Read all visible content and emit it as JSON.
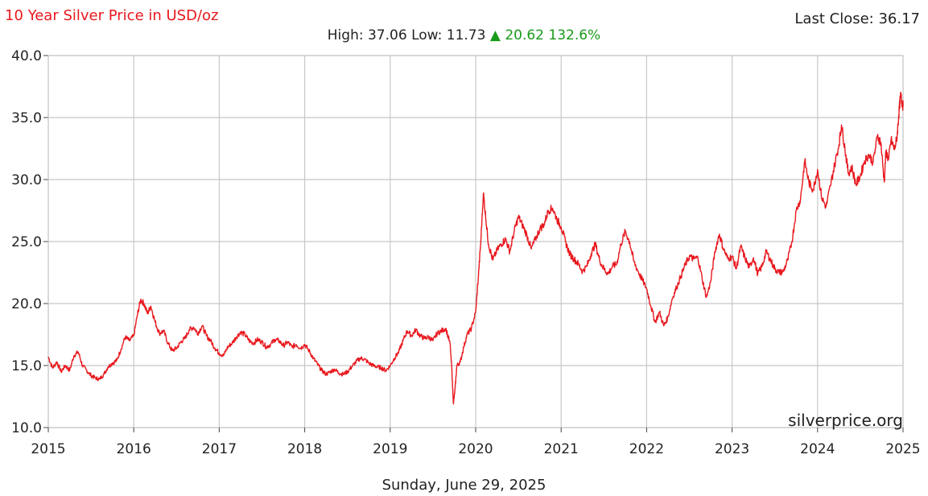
{
  "header": {
    "title": "10 Year Silver Price in USD/oz",
    "last_close_label": "Last Close:",
    "last_close_value": "36.17",
    "high_label": "High:",
    "high_value": "37.06",
    "low_label": "Low:",
    "low_value": "11.73",
    "change_arrow": "▲",
    "change_value": "20.62",
    "change_pct": "132.6%"
  },
  "watermark": "silverprice.org",
  "footer_date": "Sunday, June 29, 2025",
  "colors": {
    "series": "#e8181e",
    "title": "#e8181e",
    "positive": "#1a9a1a",
    "grid": "#c8c8c8"
  },
  "chart_data": {
    "type": "line",
    "title": "10 Year Silver Price in USD/oz",
    "xlabel": "",
    "ylabel": "",
    "xlim": [
      2015,
      2025
    ],
    "ylim": [
      10,
      40
    ],
    "x_ticks": [
      "2015",
      "2016",
      "2017",
      "2018",
      "2019",
      "2020",
      "2021",
      "2022",
      "2023",
      "2024",
      "2025"
    ],
    "y_ticks": [
      "10.0",
      "15.0",
      "20.0",
      "25.0",
      "30.0",
      "35.0",
      "40.0"
    ],
    "grid": true,
    "legend": "none",
    "series": [
      {
        "values": [
          [
            2015.0,
            15.7
          ],
          [
            2015.05,
            14.8
          ],
          [
            2015.1,
            15.3
          ],
          [
            2015.15,
            14.5
          ],
          [
            2015.2,
            15.0
          ],
          [
            2015.25,
            14.6
          ],
          [
            2015.3,
            15.8
          ],
          [
            2015.35,
            16.1
          ],
          [
            2015.4,
            15.0
          ],
          [
            2015.45,
            14.6
          ],
          [
            2015.5,
            14.2
          ],
          [
            2015.55,
            14.0
          ],
          [
            2015.6,
            13.9
          ],
          [
            2015.65,
            14.3
          ],
          [
            2015.7,
            14.9
          ],
          [
            2015.75,
            15.2
          ],
          [
            2015.8,
            15.4
          ],
          [
            2015.85,
            16.3
          ],
          [
            2015.9,
            17.3
          ],
          [
            2015.95,
            17.0
          ],
          [
            2016.0,
            17.4
          ],
          [
            2016.04,
            19.0
          ],
          [
            2016.08,
            20.3
          ],
          [
            2016.12,
            20.0
          ],
          [
            2016.16,
            19.2
          ],
          [
            2016.2,
            19.8
          ],
          [
            2016.25,
            18.5
          ],
          [
            2016.3,
            17.6
          ],
          [
            2016.35,
            17.8
          ],
          [
            2016.4,
            16.8
          ],
          [
            2016.45,
            16.2
          ],
          [
            2016.5,
            16.4
          ],
          [
            2016.55,
            16.9
          ],
          [
            2016.6,
            17.2
          ],
          [
            2016.65,
            17.9
          ],
          [
            2016.7,
            18.1
          ],
          [
            2016.75,
            17.6
          ],
          [
            2016.8,
            18.2
          ],
          [
            2016.85,
            17.4
          ],
          [
            2016.9,
            17.0
          ],
          [
            2016.95,
            16.4
          ],
          [
            2017.0,
            16.0
          ],
          [
            2017.05,
            15.8
          ],
          [
            2017.1,
            16.5
          ],
          [
            2017.15,
            16.8
          ],
          [
            2017.2,
            17.3
          ],
          [
            2017.25,
            17.7
          ],
          [
            2017.3,
            17.5
          ],
          [
            2017.35,
            17.0
          ],
          [
            2017.4,
            16.8
          ],
          [
            2017.45,
            17.1
          ],
          [
            2017.5,
            16.9
          ],
          [
            2017.55,
            16.5
          ],
          [
            2017.6,
            16.7
          ],
          [
            2017.65,
            17.1
          ],
          [
            2017.7,
            17.0
          ],
          [
            2017.75,
            16.6
          ],
          [
            2017.8,
            16.9
          ],
          [
            2017.85,
            16.5
          ],
          [
            2017.9,
            16.7
          ],
          [
            2017.95,
            16.4
          ],
          [
            2018.0,
            16.7
          ],
          [
            2018.05,
            16.2
          ],
          [
            2018.1,
            15.6
          ],
          [
            2018.15,
            15.1
          ],
          [
            2018.2,
            14.6
          ],
          [
            2018.25,
            14.3
          ],
          [
            2018.3,
            14.5
          ],
          [
            2018.35,
            14.7
          ],
          [
            2018.4,
            14.4
          ],
          [
            2018.45,
            14.3
          ],
          [
            2018.5,
            14.5
          ],
          [
            2018.55,
            14.9
          ],
          [
            2018.6,
            15.3
          ],
          [
            2018.65,
            15.6
          ],
          [
            2018.7,
            15.5
          ],
          [
            2018.75,
            15.2
          ],
          [
            2018.8,
            15.0
          ],
          [
            2018.85,
            14.9
          ],
          [
            2018.9,
            14.8
          ],
          [
            2018.95,
            14.6
          ],
          [
            2019.0,
            15.0
          ],
          [
            2019.05,
            15.6
          ],
          [
            2019.1,
            16.1
          ],
          [
            2019.15,
            17.0
          ],
          [
            2019.2,
            17.8
          ],
          [
            2019.25,
            17.4
          ],
          [
            2019.3,
            17.9
          ],
          [
            2019.35,
            17.4
          ],
          [
            2019.4,
            17.2
          ],
          [
            2019.45,
            17.3
          ],
          [
            2019.5,
            17.0
          ],
          [
            2019.55,
            17.6
          ],
          [
            2019.6,
            17.8
          ],
          [
            2019.65,
            18.0
          ],
          [
            2019.7,
            16.8
          ],
          [
            2019.72,
            14.8
          ],
          [
            2019.74,
            11.9
          ],
          [
            2019.76,
            13.2
          ],
          [
            2019.78,
            15.0
          ],
          [
            2019.82,
            15.3
          ],
          [
            2019.86,
            16.5
          ],
          [
            2019.9,
            17.5
          ],
          [
            2019.95,
            18.0
          ],
          [
            2020.0,
            19.3
          ],
          [
            2020.03,
            22.0
          ],
          [
            2020.06,
            25.0
          ],
          [
            2020.09,
            28.9
          ],
          [
            2020.12,
            26.8
          ],
          [
            2020.15,
            24.8
          ],
          [
            2020.2,
            23.5
          ],
          [
            2020.25,
            24.3
          ],
          [
            2020.3,
            24.8
          ],
          [
            2020.35,
            25.2
          ],
          [
            2020.4,
            24.2
          ],
          [
            2020.45,
            25.8
          ],
          [
            2020.5,
            27.0
          ],
          [
            2020.55,
            26.3
          ],
          [
            2020.6,
            25.5
          ],
          [
            2020.65,
            24.4
          ],
          [
            2020.7,
            25.2
          ],
          [
            2020.75,
            26.0
          ],
          [
            2020.8,
            26.4
          ],
          [
            2020.85,
            27.5
          ],
          [
            2020.9,
            27.7
          ],
          [
            2020.95,
            26.8
          ],
          [
            2021.0,
            26.2
          ],
          [
            2021.05,
            25.0
          ],
          [
            2021.1,
            24.0
          ],
          [
            2021.15,
            23.6
          ],
          [
            2021.2,
            23.2
          ],
          [
            2021.25,
            22.6
          ],
          [
            2021.3,
            23.0
          ],
          [
            2021.35,
            24.0
          ],
          [
            2021.4,
            24.8
          ],
          [
            2021.45,
            23.5
          ],
          [
            2021.5,
            22.8
          ],
          [
            2021.55,
            22.4
          ],
          [
            2021.6,
            23.0
          ],
          [
            2021.65,
            23.2
          ],
          [
            2021.7,
            24.8
          ],
          [
            2021.75,
            25.8
          ],
          [
            2021.8,
            25.0
          ],
          [
            2021.85,
            23.4
          ],
          [
            2021.9,
            22.6
          ],
          [
            2021.95,
            21.9
          ],
          [
            2022.0,
            21.2
          ],
          [
            2022.05,
            19.8
          ],
          [
            2022.1,
            18.5
          ],
          [
            2022.15,
            19.3
          ],
          [
            2022.2,
            18.2
          ],
          [
            2022.25,
            18.9
          ],
          [
            2022.3,
            20.4
          ],
          [
            2022.35,
            21.3
          ],
          [
            2022.4,
            22.2
          ],
          [
            2022.45,
            23.1
          ],
          [
            2022.5,
            23.8
          ],
          [
            2022.55,
            23.6
          ],
          [
            2022.6,
            23.7
          ],
          [
            2022.65,
            22.0
          ],
          [
            2022.7,
            20.5
          ],
          [
            2022.75,
            21.8
          ],
          [
            2022.8,
            24.2
          ],
          [
            2022.85,
            25.6
          ],
          [
            2022.9,
            24.4
          ],
          [
            2022.95,
            23.6
          ],
          [
            2023.0,
            23.8
          ],
          [
            2023.05,
            22.8
          ],
          [
            2023.1,
            24.6
          ],
          [
            2023.15,
            23.7
          ],
          [
            2023.2,
            22.9
          ],
          [
            2023.25,
            23.7
          ],
          [
            2023.3,
            22.4
          ],
          [
            2023.35,
            23.0
          ],
          [
            2023.4,
            24.2
          ],
          [
            2023.45,
            23.5
          ],
          [
            2023.5,
            22.8
          ],
          [
            2023.55,
            22.5
          ],
          [
            2023.6,
            22.6
          ],
          [
            2023.65,
            23.5
          ],
          [
            2023.7,
            25.0
          ],
          [
            2023.75,
            27.5
          ],
          [
            2023.8,
            28.4
          ],
          [
            2023.85,
            31.5
          ],
          [
            2023.9,
            29.7
          ],
          [
            2023.95,
            29.2
          ],
          [
            2024.0,
            30.8
          ],
          [
            2024.05,
            28.5
          ],
          [
            2024.1,
            27.8
          ],
          [
            2024.15,
            29.5
          ],
          [
            2024.2,
            31.2
          ],
          [
            2024.25,
            32.8
          ],
          [
            2024.28,
            34.4
          ],
          [
            2024.32,
            32.5
          ],
          [
            2024.36,
            30.5
          ],
          [
            2024.4,
            31.0
          ],
          [
            2024.45,
            29.6
          ],
          [
            2024.5,
            30.3
          ],
          [
            2024.55,
            31.5
          ],
          [
            2024.6,
            32.0
          ],
          [
            2024.65,
            31.4
          ],
          [
            2024.7,
            33.5
          ],
          [
            2024.74,
            33.0
          ],
          [
            2024.78,
            29.8
          ],
          [
            2024.8,
            32.3
          ],
          [
            2024.83,
            31.6
          ],
          [
            2024.86,
            33.2
          ],
          [
            2024.9,
            32.4
          ],
          [
            2024.93,
            33.5
          ],
          [
            2024.95,
            35.2
          ],
          [
            2024.97,
            36.8
          ],
          [
            2024.99,
            36.2
          ],
          [
            2025.0,
            35.9
          ]
        ]
      }
    ]
  }
}
